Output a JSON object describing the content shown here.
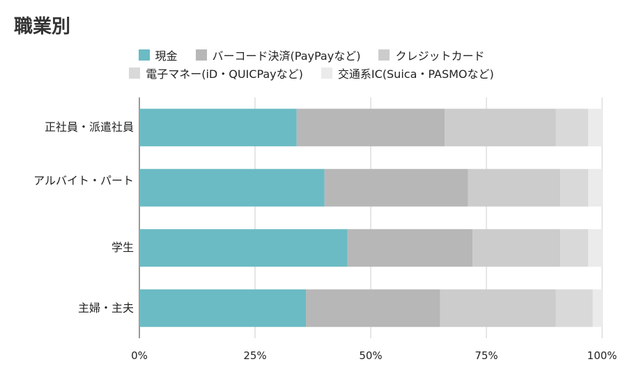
{
  "chart_data": {
    "type": "stacked-barh",
    "title": "職業別",
    "categories": [
      "正社員・派遣社員",
      "アルバイト・パート",
      "学生",
      "主婦・主夫"
    ],
    "series": [
      {
        "name": "現金",
        "color": "#6bbbc4",
        "values": [
          34,
          40,
          45,
          36
        ]
      },
      {
        "name": "バーコード決済(PayPayなど)",
        "color": "#b7b7b7",
        "values": [
          32,
          31,
          27,
          29
        ]
      },
      {
        "name": "クレジットカード",
        "color": "#cccccc",
        "values": [
          24,
          20,
          19,
          25
        ]
      },
      {
        "name": "電子マネー(iD・QUICPayなど)",
        "color": "#d9d9d9",
        "values": [
          7,
          6,
          6,
          8
        ]
      },
      {
        "name": "交通系IC(Suica・PASMOなど)",
        "color": "#ebebeb",
        "values": [
          3,
          3,
          3,
          2
        ]
      }
    ],
    "xlim": [
      0,
      100
    ],
    "xticks": [
      {
        "value": 0,
        "label": "0%"
      },
      {
        "value": 25,
        "label": "25%"
      },
      {
        "value": 50,
        "label": "50%"
      },
      {
        "value": 75,
        "label": "75%"
      },
      {
        "value": 100,
        "label": "100%"
      }
    ],
    "grid": true
  }
}
